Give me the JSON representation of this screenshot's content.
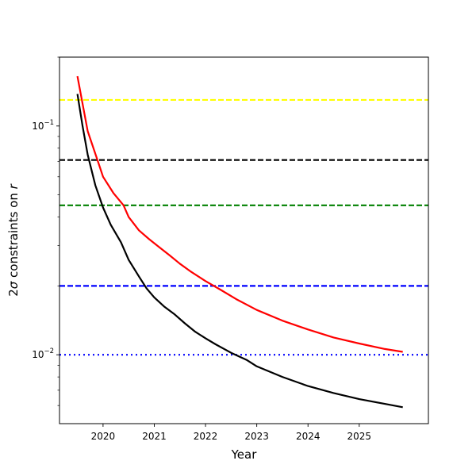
{
  "chart_data": {
    "type": "line",
    "title": "",
    "xlabel": "Year",
    "ylabel_parts": [
      "2",
      "σ",
      " constraints on ",
      "r"
    ],
    "xscale": "linear",
    "yscale": "log",
    "xlim": [
      2019.15,
      2026.35
    ],
    "ylim": [
      0.005,
      0.2
    ],
    "x_ticks": [
      {
        "value": 2020,
        "label": "2020"
      },
      {
        "value": 2021,
        "label": "2021"
      },
      {
        "value": 2022,
        "label": "2022"
      },
      {
        "value": 2023,
        "label": "2023"
      },
      {
        "value": 2024,
        "label": "2024"
      },
      {
        "value": 2025,
        "label": "2025"
      }
    ],
    "y_major_ticks": [
      {
        "value": 0.1,
        "base": "10",
        "exp": "−1"
      },
      {
        "value": 0.01,
        "base": "10",
        "exp": "−2"
      }
    ],
    "y_minor_ticks": [
      0.006,
      0.007,
      0.008,
      0.009,
      0.02,
      0.03,
      0.04,
      0.05,
      0.06,
      0.07,
      0.08,
      0.09,
      0.2
    ],
    "grid": false,
    "legend": "none",
    "hlines": [
      {
        "y": 0.13,
        "color": "#ffff00",
        "style": "dashed"
      },
      {
        "y": 0.071,
        "color": "#000000",
        "style": "dashed"
      },
      {
        "y": 0.045,
        "color": "#008000",
        "style": "dashed"
      },
      {
        "y": 0.02,
        "color": "#0000ff",
        "style": "dashed"
      },
      {
        "y": 0.01,
        "color": "#0000ff",
        "style": "dotted"
      }
    ],
    "series": [
      {
        "color": "#ff0000",
        "x": [
          2019.5,
          2019.7,
          2019.9,
          2020.0,
          2020.2,
          2020.4,
          2020.5,
          2020.7,
          2020.9,
          2021.1,
          2021.3,
          2021.5,
          2021.7,
          2022.0,
          2022.3,
          2022.6,
          2023.0,
          2023.5,
          2024.0,
          2024.5,
          2025.0,
          2025.5,
          2025.85
        ],
        "y": [
          0.165,
          0.095,
          0.07,
          0.06,
          0.051,
          0.045,
          0.04,
          0.035,
          0.032,
          0.0295,
          0.0272,
          0.025,
          0.0232,
          0.021,
          0.0192,
          0.0175,
          0.0157,
          0.0141,
          0.0129,
          0.0119,
          0.0112,
          0.0106,
          0.0103
        ]
      },
      {
        "color": "#000000",
        "x": [
          2019.5,
          2019.6,
          2019.7,
          2019.85,
          2020.0,
          2020.15,
          2020.35,
          2020.5,
          2020.7,
          2020.85,
          2021.0,
          2021.2,
          2021.4,
          2021.6,
          2021.8,
          2022.0,
          2022.2,
          2022.5,
          2022.8,
          2023.0,
          2023.5,
          2024.0,
          2024.5,
          2025.0,
          2025.5,
          2025.85
        ],
        "y": [
          0.138,
          0.1,
          0.075,
          0.055,
          0.044,
          0.037,
          0.031,
          0.026,
          0.022,
          0.0195,
          0.0178,
          0.0162,
          0.015,
          0.0137,
          0.0126,
          0.0118,
          0.0111,
          0.0102,
          0.0095,
          0.0089,
          0.008,
          0.0073,
          0.0068,
          0.0064,
          0.0061,
          0.0059
        ]
      }
    ]
  }
}
